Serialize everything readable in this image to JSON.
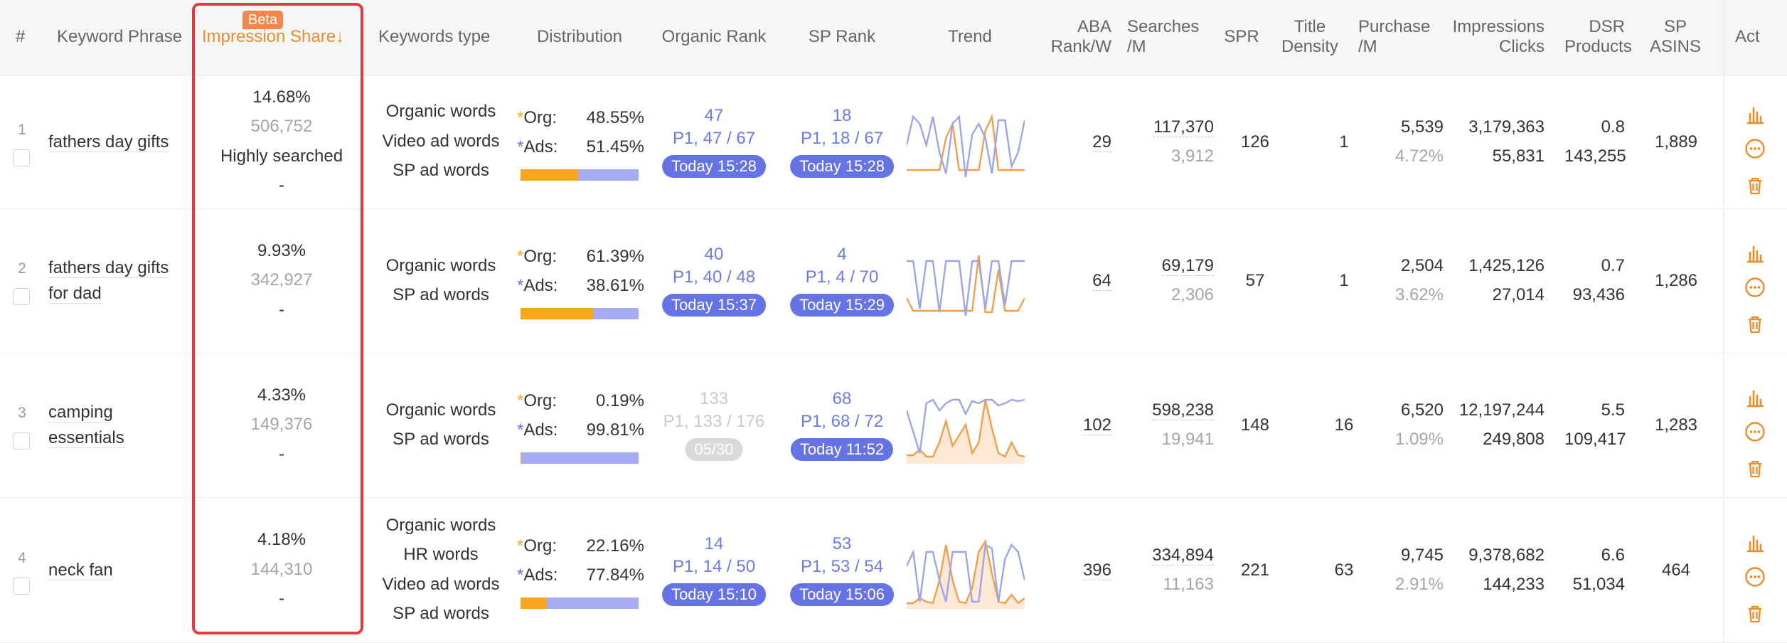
{
  "colors": {
    "accent": "#f08a24",
    "blue": "#6673e4",
    "highlight": "#e23b3b",
    "bar_org": "#f7a61d",
    "bar_ads": "#a5acf2"
  },
  "headers": {
    "num": "#",
    "keyword": "Keyword Phrase",
    "impression": "Impression Share",
    "impression_sort": "↓",
    "beta": "Beta",
    "kw_type": "Keywords type",
    "distribution": "Distribution",
    "organic_rank": "Organic Rank",
    "sp_rank": "SP Rank",
    "trend": "Trend",
    "aba_1": "ABA",
    "aba_2": "Rank/W",
    "searches_1": "Searches",
    "searches_2": "/M",
    "spr": "SPR",
    "title_1": "Title",
    "title_2": "Density",
    "purchase_1": "Purchase",
    "purchase_2": "/M",
    "impr_1": "Impressions",
    "impr_2": "Clicks",
    "dsr_1": "DSR",
    "dsr_2": "Products",
    "sp_1": "SP",
    "sp_2": "ASINS",
    "act": "Act"
  },
  "labels": {
    "org": "Org:",
    "ads": "Ads:",
    "star": "*"
  },
  "rows": [
    {
      "num": "1",
      "kw_1": "fathers day gifts",
      "kw_2": "",
      "share": "14.68%",
      "impressions": "506,752",
      "tag": "Highly searched",
      "dash": "-",
      "types": [
        "Organic words",
        "Video ad words",
        "SP ad words"
      ],
      "org": "48.55%",
      "ads": "51.45%",
      "org_fraction": 0.4855,
      "organic_rank": "47",
      "organic_page": "P1, 47 / 67",
      "organic_time": "Today 15:28",
      "organic_active": true,
      "sp_rank": "18",
      "sp_page": "P1, 18 / 67",
      "sp_time": "Today 15:28",
      "aba": "29",
      "searches": "117,370",
      "searches_sub": "3,912",
      "spr": "126",
      "title_density": "1",
      "purchase": "5,539",
      "purchase_rate": "4.72%",
      "impressions_m": "3,179,363",
      "clicks": "55,831",
      "dsr": "0.8",
      "products": "143,255",
      "sp_asins": "1,889"
    },
    {
      "num": "2",
      "kw_1": "fathers day gifts",
      "kw_2": "for dad",
      "share": "9.93%",
      "impressions": "342,927",
      "tag": "",
      "dash": "-",
      "types": [
        "Organic words",
        "SP ad words"
      ],
      "org": "61.39%",
      "ads": "38.61%",
      "org_fraction": 0.6139,
      "organic_rank": "40",
      "organic_page": "P1, 40 / 48",
      "organic_time": "Today 15:37",
      "organic_active": true,
      "sp_rank": "4",
      "sp_page": "P1, 4 / 70",
      "sp_time": "Today 15:29",
      "aba": "64",
      "searches": "69,179",
      "searches_sub": "2,306",
      "spr": "57",
      "title_density": "1",
      "purchase": "2,504",
      "purchase_rate": "3.62%",
      "impressions_m": "1,425,126",
      "clicks": "27,014",
      "dsr": "0.7",
      "products": "93,436",
      "sp_asins": "1,286"
    },
    {
      "num": "3",
      "kw_1": "camping",
      "kw_2": "essentials",
      "share": "4.33%",
      "impressions": "149,376",
      "tag": "",
      "dash": "-",
      "types": [
        "Organic words",
        "SP ad words"
      ],
      "org": "0.19%",
      "ads": "99.81%",
      "org_fraction": 0.0019,
      "organic_rank": "133",
      "organic_page": "P1, 133 / 176",
      "organic_time": "05/30",
      "organic_active": false,
      "sp_rank": "68",
      "sp_page": "P1, 68 / 72",
      "sp_time": "Today 11:52",
      "aba": "102",
      "searches": "598,238",
      "searches_sub": "19,941",
      "spr": "148",
      "title_density": "16",
      "purchase": "6,520",
      "purchase_rate": "1.09%",
      "impressions_m": "12,197,244",
      "clicks": "249,808",
      "dsr": "5.5",
      "products": "109,417",
      "sp_asins": "1,283"
    },
    {
      "num": "4",
      "kw_1": "neck fan",
      "kw_2": "",
      "share": "4.18%",
      "impressions": "144,310",
      "tag": "",
      "dash": "-",
      "types": [
        "Organic words",
        "HR words",
        "Video ad words",
        "SP ad words"
      ],
      "org": "22.16%",
      "ads": "77.84%",
      "org_fraction": 0.2216,
      "organic_rank": "14",
      "organic_page": "P1, 14 / 50",
      "organic_time": "Today 15:10",
      "organic_active": true,
      "sp_rank": "53",
      "sp_page": "P1, 53 / 54",
      "sp_time": "Today 15:06",
      "aba": "396",
      "searches": "334,894",
      "searches_sub": "11,163",
      "spr": "221",
      "title_density": "63",
      "purchase": "9,745",
      "purchase_rate": "2.91%",
      "impressions_m": "9,378,682",
      "clicks": "144,233",
      "dsr": "6.6",
      "products": "51,034",
      "sp_asins": "464"
    }
  ],
  "icons": [
    "bar-chart-icon",
    "more-icon",
    "trash-icon"
  ]
}
